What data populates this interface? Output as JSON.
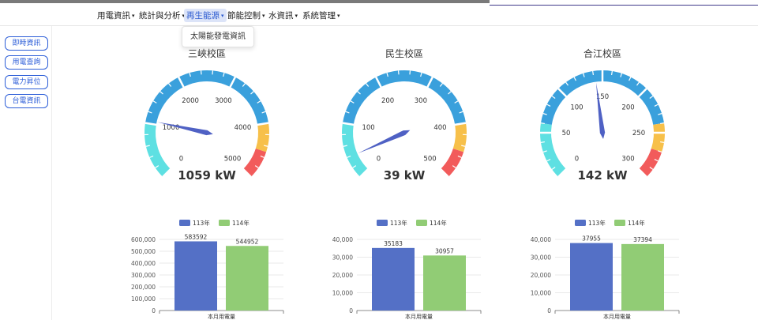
{
  "nav": {
    "items": [
      {
        "label": "用電資訊"
      },
      {
        "label": "統計與分析"
      },
      {
        "label": "再生能源"
      },
      {
        "label": "節能控制"
      },
      {
        "label": "水資訊"
      },
      {
        "label": "系統管理"
      }
    ],
    "active_index": 2,
    "caret": "▾",
    "dropdown_item": "太陽能發電資訊"
  },
  "sidebar": {
    "items": [
      {
        "label": "即時資訊"
      },
      {
        "label": "用電查詢"
      },
      {
        "label": "電力昇位"
      },
      {
        "label": "台電資訊"
      }
    ]
  },
  "colors": {
    "accent": "#2d5ed8",
    "gauge_bands": [
      "#5ee0e2",
      "#3aa0dc",
      "#f7c04a",
      "#f25b5b"
    ],
    "needle": "#4f61c4",
    "bar_113": "#5470c6",
    "bar_114": "#91cc75"
  },
  "gauges": [
    {
      "title": "三峽校區",
      "min": 0,
      "max": 5000,
      "value": 1059,
      "unit": "kW",
      "readout": "1059 kW",
      "ticks": [
        "0",
        "1000",
        "2000",
        "3000",
        "4000",
        "5000"
      ]
    },
    {
      "title": "民生校區",
      "min": 0,
      "max": 500,
      "value": 39,
      "unit": "kW",
      "readout": "39 kW",
      "ticks": [
        "0",
        "100",
        "200",
        "300",
        "400",
        "500"
      ]
    },
    {
      "title": "合江校區",
      "min": 0,
      "max": 300,
      "value": 142,
      "unit": "kW",
      "readout": "142 kW",
      "ticks": [
        "0",
        "50",
        "100",
        "150",
        "200",
        "250",
        "300"
      ]
    }
  ],
  "chart_data": [
    {
      "type": "bar",
      "categories": [
        "本月用電量"
      ],
      "series": [
        {
          "name": "113年",
          "values": [
            583592
          ]
        },
        {
          "name": "114年",
          "values": [
            544952
          ]
        }
      ],
      "ylim": [
        0,
        600000
      ],
      "yticks": [
        "0",
        "100,000",
        "200,000",
        "300,000",
        "400,000",
        "500,000",
        "600,000"
      ],
      "legend": "top-center",
      "grid": true
    },
    {
      "type": "bar",
      "categories": [
        "本月用電量"
      ],
      "series": [
        {
          "name": "113年",
          "values": [
            35183
          ]
        },
        {
          "name": "114年",
          "values": [
            30957
          ]
        }
      ],
      "ylim": [
        0,
        40000
      ],
      "yticks": [
        "0",
        "10,000",
        "20,000",
        "30,000",
        "40,000"
      ],
      "legend": "top-center",
      "grid": true
    },
    {
      "type": "bar",
      "categories": [
        "本月用電量"
      ],
      "series": [
        {
          "name": "113年",
          "values": [
            37955
          ]
        },
        {
          "name": "114年",
          "values": [
            37394
          ]
        }
      ],
      "ylim": [
        0,
        40000
      ],
      "yticks": [
        "0",
        "10,000",
        "20,000",
        "30,000",
        "40,000"
      ],
      "legend": "top-center",
      "grid": true
    }
  ]
}
